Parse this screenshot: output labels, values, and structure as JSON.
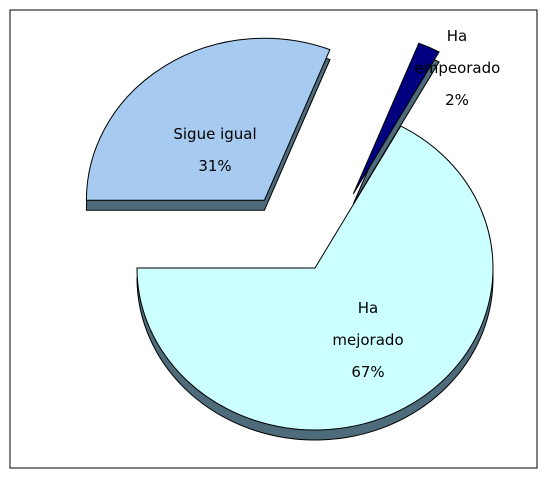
{
  "chart_data": {
    "type": "pie",
    "categories": [
      "Sigue igual",
      "Ha empeorado",
      "Ha mejorado"
    ],
    "values": [
      31,
      2,
      67
    ],
    "value_labels": [
      "31%",
      "2%",
      "67%"
    ],
    "colors": [
      "#a6caf0",
      "#000080",
      "#ccffff"
    ]
  }
}
